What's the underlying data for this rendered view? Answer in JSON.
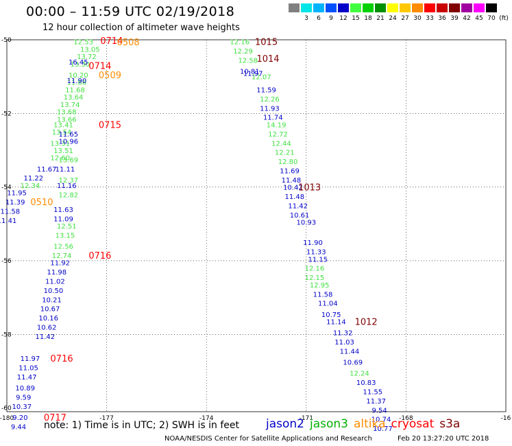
{
  "header": {
    "title": "00:00 – 11:59 UTC 02/19/2018",
    "subtitle": "12 hour collection of altimeter wave heights",
    "unit_label": "(ft)"
  },
  "legend": [
    {
      "label": "",
      "color": "#808080"
    },
    {
      "label": "3",
      "color": "#00e5e5"
    },
    {
      "label": "6",
      "color": "#00b4ff"
    },
    {
      "label": "9",
      "color": "#0050ff"
    },
    {
      "label": "12",
      "color": "#0000c8"
    },
    {
      "label": "15",
      "color": "#40ff40"
    },
    {
      "label": "18",
      "color": "#00d000"
    },
    {
      "label": "21",
      "color": "#009000"
    },
    {
      "label": "24",
      "color": "#ffff00"
    },
    {
      "label": "27",
      "color": "#ffc800"
    },
    {
      "label": "30",
      "color": "#ff8c00"
    },
    {
      "label": "33",
      "color": "#ff0000"
    },
    {
      "label": "36",
      "color": "#c80000"
    },
    {
      "label": "39",
      "color": "#800000"
    },
    {
      "label": "42",
      "color": "#a000a0"
    },
    {
      "label": "45",
      "color": "#ff00ff"
    },
    {
      "label": "70",
      "color": "#000000"
    }
  ],
  "map": {
    "lon_ticks": [
      "-180",
      "-177",
      "-174",
      "-171",
      "-168",
      "-16"
    ],
    "lat_ticks": [
      "-50",
      "-52",
      "-54",
      "-56",
      "-58",
      "-60"
    ]
  },
  "chart_data": {
    "type": "scatter",
    "colors": {
      "jason2": "#0000c8",
      "jason3": "#40e040",
      "altika": "#ff8c00",
      "cryosat": "#ff0000",
      "s3a": "#800000"
    },
    "tracks": [
      {
        "sat": "jason3",
        "points": [
          {
            "lon": -177.7,
            "lat": -50.05,
            "v": "12.53"
          },
          {
            "lon": -177.5,
            "lat": -50.25,
            "v": "13.05"
          },
          {
            "lon": -177.6,
            "lat": -50.45,
            "v": "13.72"
          },
          {
            "lon": -177.8,
            "lat": -50.65,
            "v": "13.30"
          },
          {
            "lon": -177.85,
            "lat": -50.95,
            "v": "10.20"
          },
          {
            "lon": -177.9,
            "lat": -51.15,
            "v": "11.86"
          },
          {
            "lon": -177.95,
            "lat": -51.35,
            "v": "11.68"
          },
          {
            "lon": -178.0,
            "lat": -51.55,
            "v": "13.64"
          },
          {
            "lon": -178.1,
            "lat": -51.75,
            "v": "13.74"
          },
          {
            "lon": -178.2,
            "lat": -51.95,
            "v": "13.68"
          },
          {
            "lon": -178.2,
            "lat": -52.15,
            "v": "13.66"
          },
          {
            "lon": -178.3,
            "lat": -52.3,
            "v": "13.41"
          },
          {
            "lon": -178.35,
            "lat": -52.5,
            "v": "13.54"
          },
          {
            "lon": -178.4,
            "lat": -52.8,
            "v": "13.31"
          },
          {
            "lon": -178.3,
            "lat": -53.0,
            "v": "13.51"
          },
          {
            "lon": -178.4,
            "lat": -53.2,
            "v": "12.60"
          },
          {
            "lon": -178.15,
            "lat": -53.25,
            "v": "13.69"
          },
          {
            "lon": -178.15,
            "lat": -53.8,
            "v": "12.37"
          },
          {
            "lon": -179.3,
            "lat": -53.95,
            "v": "12.34"
          },
          {
            "lon": -178.15,
            "lat": -54.2,
            "v": "12.82"
          },
          {
            "lon": -178.2,
            "lat": -55.05,
            "v": "12.51"
          },
          {
            "lon": -178.25,
            "lat": -55.3,
            "v": "13.15"
          },
          {
            "lon": -178.3,
            "lat": -55.6,
            "v": "12.56"
          },
          {
            "lon": -178.35,
            "lat": -55.85,
            "v": "12.74"
          }
        ]
      },
      {
        "sat": "jason2",
        "points": [
          {
            "lon": -177.85,
            "lat": -50.6,
            "v": "16.45"
          },
          {
            "lon": -177.9,
            "lat": -51.1,
            "v": "11.90"
          },
          {
            "lon": -178.15,
            "lat": -52.55,
            "v": "11.65"
          },
          {
            "lon": -178.15,
            "lat": -52.75,
            "v": "10.96"
          },
          {
            "lon": -178.25,
            "lat": -53.5,
            "v": "11.11"
          },
          {
            "lon": -178.8,
            "lat": -53.5,
            "v": "11.67"
          },
          {
            "lon": -179.2,
            "lat": -53.75,
            "v": "11.22"
          },
          {
            "lon": -178.2,
            "lat": -53.95,
            "v": "11.16"
          },
          {
            "lon": -179.7,
            "lat": -54.15,
            "v": "11.95"
          },
          {
            "lon": -179.75,
            "lat": -54.4,
            "v": "11.39"
          },
          {
            "lon": -179.9,
            "lat": -54.65,
            "v": "11.58"
          },
          {
            "lon": -178.3,
            "lat": -54.6,
            "v": "11.63"
          },
          {
            "lon": -178.3,
            "lat": -54.85,
            "v": "11.09"
          },
          {
            "lon": -180.0,
            "lat": -54.9,
            "v": "11.41"
          },
          {
            "lon": -178.4,
            "lat": -56.05,
            "v": "11.92"
          },
          {
            "lon": -178.5,
            "lat": -56.3,
            "v": "11.98"
          },
          {
            "lon": -178.55,
            "lat": -56.55,
            "v": "11.02"
          },
          {
            "lon": -178.6,
            "lat": -56.8,
            "v": "10.50"
          },
          {
            "lon": -178.65,
            "lat": -57.05,
            "v": "10.21"
          },
          {
            "lon": -178.7,
            "lat": -57.3,
            "v": "10.67"
          },
          {
            "lon": -178.75,
            "lat": -57.55,
            "v": "10.16"
          },
          {
            "lon": -178.8,
            "lat": -57.8,
            "v": "10.62"
          },
          {
            "lon": -178.85,
            "lat": -58.05,
            "v": "11.42"
          },
          {
            "lon": -179.3,
            "lat": -58.65,
            "v": "11.97"
          },
          {
            "lon": -179.35,
            "lat": -58.9,
            "v": "11.05"
          },
          {
            "lon": -179.4,
            "lat": -59.15,
            "v": "11.47"
          },
          {
            "lon": -179.45,
            "lat": -59.45,
            "v": "10.89"
          },
          {
            "lon": -179.5,
            "lat": -59.7,
            "v": "9.59"
          },
          {
            "lon": -179.55,
            "lat": -59.95,
            "v": "10.37"
          },
          {
            "lon": -179.6,
            "lat": -60.25,
            "v": "9.20"
          },
          {
            "lon": -179.65,
            "lat": -60.5,
            "v": "9.44"
          }
        ]
      },
      {
        "sat": "jason3",
        "points": [
          {
            "lon": -173.0,
            "lat": -50.05,
            "v": "12.16"
          },
          {
            "lon": -172.9,
            "lat": -50.3,
            "v": "12.29"
          },
          {
            "lon": -172.75,
            "lat": -50.55,
            "v": "12.58"
          },
          {
            "lon": -172.35,
            "lat": -51.0,
            "v": "12.07"
          },
          {
            "lon": -172.1,
            "lat": -51.6,
            "v": "12.26"
          },
          {
            "lon": -171.9,
            "lat": -52.3,
            "v": "14.19"
          },
          {
            "lon": -171.85,
            "lat": -52.55,
            "v": "12.72"
          },
          {
            "lon": -171.75,
            "lat": -52.8,
            "v": "12.44"
          },
          {
            "lon": -171.65,
            "lat": -53.05,
            "v": "12.21"
          },
          {
            "lon": -171.55,
            "lat": -53.3,
            "v": "12.80"
          },
          {
            "lon": -170.75,
            "lat": -56.2,
            "v": "12.16"
          },
          {
            "lon": -170.75,
            "lat": -56.45,
            "v": "12.15"
          },
          {
            "lon": -170.6,
            "lat": -56.65,
            "v": "12.95"
          },
          {
            "lon": -169.4,
            "lat": -59.05,
            "v": "12.24"
          }
        ]
      },
      {
        "sat": "jason2",
        "points": [
          {
            "lon": -172.7,
            "lat": -50.85,
            "v": "10.81"
          },
          {
            "lon": -172.6,
            "lat": -50.9,
            "v": "11.97"
          },
          {
            "lon": -172.2,
            "lat": -51.35,
            "v": "11.59"
          },
          {
            "lon": -172.1,
            "lat": -51.85,
            "v": "11.93"
          },
          {
            "lon": -172.0,
            "lat": -52.1,
            "v": "11.74"
          },
          {
            "lon": -171.5,
            "lat": -53.55,
            "v": "11.69"
          },
          {
            "lon": -171.45,
            "lat": -53.8,
            "v": "11.48"
          },
          {
            "lon": -171.4,
            "lat": -54.0,
            "v": "10.42"
          },
          {
            "lon": -171.35,
            "lat": -54.25,
            "v": "11.48"
          },
          {
            "lon": -171.25,
            "lat": -54.5,
            "v": "11.42"
          },
          {
            "lon": -171.2,
            "lat": -54.75,
            "v": "10.61"
          },
          {
            "lon": -171.0,
            "lat": -54.95,
            "v": "10.93"
          },
          {
            "lon": -170.8,
            "lat": -55.5,
            "v": "11.90"
          },
          {
            "lon": -170.7,
            "lat": -55.75,
            "v": "11.33"
          },
          {
            "lon": -170.65,
            "lat": -55.95,
            "v": "11.15"
          },
          {
            "lon": -170.5,
            "lat": -56.9,
            "v": "11.58"
          },
          {
            "lon": -170.35,
            "lat": -57.15,
            "v": "11.04"
          },
          {
            "lon": -170.25,
            "lat": -57.45,
            "v": "10.75"
          },
          {
            "lon": -170.1,
            "lat": -57.65,
            "v": "11.14"
          },
          {
            "lon": -169.9,
            "lat": -57.95,
            "v": "11.32"
          },
          {
            "lon": -169.85,
            "lat": -58.2,
            "v": "11.03"
          },
          {
            "lon": -169.7,
            "lat": -58.45,
            "v": "11.44"
          },
          {
            "lon": -169.6,
            "lat": -58.75,
            "v": "10.69"
          },
          {
            "lon": -169.2,
            "lat": -59.3,
            "v": "10.83"
          },
          {
            "lon": -169.0,
            "lat": -59.55,
            "v": "11.55"
          },
          {
            "lon": -168.9,
            "lat": -59.8,
            "v": "11.37"
          },
          {
            "lon": -168.8,
            "lat": -60.05,
            "v": "9.54"
          },
          {
            "lon": -168.75,
            "lat": -60.3,
            "v": "10.74"
          },
          {
            "lon": -168.7,
            "lat": -60.55,
            "v": "10.77"
          }
        ]
      }
    ],
    "time_labels": [
      {
        "sat": "cryosat",
        "lon": -176.85,
        "lat": -50.02,
        "v": "0714"
      },
      {
        "sat": "altika",
        "lon": -176.35,
        "lat": -50.06,
        "v": "0508"
      },
      {
        "sat": "cryosat",
        "lon": -177.2,
        "lat": -50.7,
        "v": "0714"
      },
      {
        "sat": "altika",
        "lon": -176.9,
        "lat": -50.95,
        "v": "0509"
      },
      {
        "sat": "cryosat",
        "lon": -176.9,
        "lat": -52.3,
        "v": "0715"
      },
      {
        "sat": "altika",
        "lon": -178.95,
        "lat": -54.4,
        "v": "0510"
      },
      {
        "sat": "cryosat",
        "lon": -177.2,
        "lat": -55.85,
        "v": "0716"
      },
      {
        "sat": "cryosat",
        "lon": -178.35,
        "lat": -58.65,
        "v": "0716"
      },
      {
        "sat": "cryosat",
        "lon": -178.55,
        "lat": -60.25,
        "v": "0717"
      },
      {
        "sat": "s3a",
        "lon": -172.2,
        "lat": -50.05,
        "v": "1015"
      },
      {
        "sat": "s3a",
        "lon": -172.15,
        "lat": -50.5,
        "v": "1014"
      },
      {
        "sat": "s3a",
        "lon": -170.9,
        "lat": -54.0,
        "v": "1013"
      },
      {
        "sat": "s3a",
        "lon": -169.2,
        "lat": -57.65,
        "v": "1012"
      }
    ],
    "lon_range": [
      -180,
      -165
    ],
    "lat_range": [
      -50,
      -60
    ]
  },
  "footer": {
    "note": "note: 1) Time is in UTC; 2) SWH is in feet",
    "satellites": [
      {
        "name": "jason2",
        "color": "#0000c8"
      },
      {
        "name": "jason3",
        "color": "#00b000"
      },
      {
        "name": "altika",
        "color": "#ff8c00"
      },
      {
        "name": "cryosat",
        "color": "#ff0000"
      },
      {
        "name": "s3a",
        "color": "#800000"
      }
    ],
    "credit": "NOAA/NESDIS Center for Satellite Applications and Research",
    "timestamp": "Feb 20 13:27:20 UTC 2018"
  }
}
